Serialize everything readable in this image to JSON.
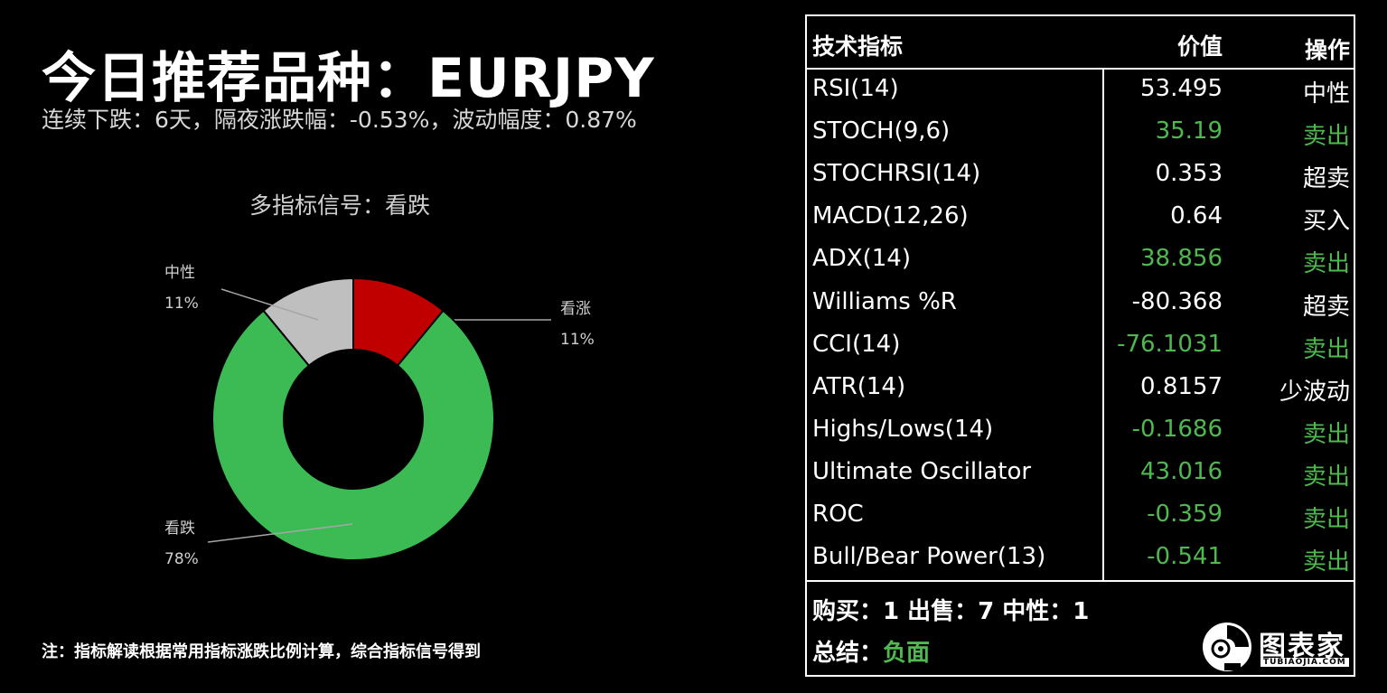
{
  "header": {
    "title": "今日推荐品种：EURJPY",
    "subtitle": "连续下跌：6天，隔夜涨跌幅：-0.53%，波动幅度：0.87%"
  },
  "colors": {
    "bullish": "#c00000",
    "bearish": "#3cbb55",
    "neutral": "#bfbfbf",
    "green_text": "#4fb84f",
    "white": "#ffffff"
  },
  "chart_data": {
    "type": "pie",
    "title": "多指标信号：看跌",
    "slices": [
      {
        "label": "看涨",
        "value": 11,
        "value_label": "11%",
        "color": "#c00000"
      },
      {
        "label": "看跌",
        "value": 78,
        "value_label": "78%",
        "color": "#3cbb55"
      },
      {
        "label": "中性",
        "value": 11,
        "value_label": "11%",
        "color": "#bfbfbf"
      }
    ]
  },
  "footnote": "注：指标解读根据常用指标涨跌比例计算，综合指标信号得到",
  "table": {
    "headers": {
      "name": "技术指标",
      "value": "价值",
      "action": "操作"
    },
    "rows": [
      {
        "name": "RSI(14)",
        "value": "53.495",
        "action": "中性",
        "green": false
      },
      {
        "name": "STOCH(9,6)",
        "value": "35.19",
        "action": "卖出",
        "green": true
      },
      {
        "name": "STOCHRSI(14)",
        "value": "0.353",
        "action": "超卖",
        "green": false
      },
      {
        "name": "MACD(12,26)",
        "value": "0.64",
        "action": "买入",
        "green": false
      },
      {
        "name": "ADX(14)",
        "value": "38.856",
        "action": "卖出",
        "green": true
      },
      {
        "name": "Williams %R",
        "value": "-80.368",
        "action": "超卖",
        "green": false
      },
      {
        "name": "CCI(14)",
        "value": "-76.1031",
        "action": "卖出",
        "green": true
      },
      {
        "name": "ATR(14)",
        "value": "0.8157",
        "action": "少波动",
        "green": false
      },
      {
        "name": "Highs/Lows(14)",
        "value": "-0.1686",
        "action": "卖出",
        "green": true
      },
      {
        "name": "Ultimate Oscillator",
        "value": "43.016",
        "action": "卖出",
        "green": true
      },
      {
        "name": "ROC",
        "value": "-0.359",
        "action": "卖出",
        "green": true
      },
      {
        "name": "Bull/Bear Power(13)",
        "value": "-0.541",
        "action": "卖出",
        "green": true
      }
    ],
    "counts": "购买：1 出售：7 中性：1",
    "summary_label": "总结：",
    "summary_value": "负面"
  },
  "logo": {
    "text": "图表家",
    "sub": "TUBIAOJIA.COM",
    "icon": "robot-head-icon"
  }
}
